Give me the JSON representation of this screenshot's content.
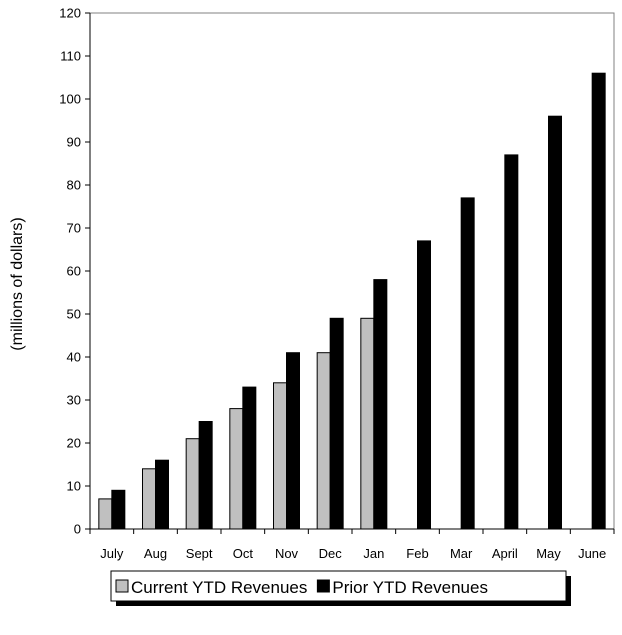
{
  "chart_data": {
    "type": "bar",
    "categories": [
      "July",
      "Aug",
      "Sept",
      "Oct",
      "Nov",
      "Dec",
      "Jan",
      "Feb",
      "Mar",
      "April",
      "May",
      "June"
    ],
    "series": [
      {
        "name": "Current YTD Revenues",
        "color": "#c0c0c0",
        "values": [
          7,
          14,
          21,
          28,
          34,
          41,
          49,
          null,
          null,
          null,
          null,
          null
        ]
      },
      {
        "name": "Prior YTD Revenues",
        "color": "#000000",
        "values": [
          9,
          16,
          25,
          33,
          41,
          49,
          58,
          67,
          77,
          87,
          96,
          106
        ]
      }
    ],
    "ylabel": "(millions of dollars)",
    "xlabel": "",
    "ylim": [
      0,
      120
    ],
    "yticks": [
      0,
      10,
      20,
      30,
      40,
      50,
      60,
      70,
      80,
      90,
      100,
      110,
      120
    ],
    "grid": false,
    "legend_position": "bottom"
  }
}
